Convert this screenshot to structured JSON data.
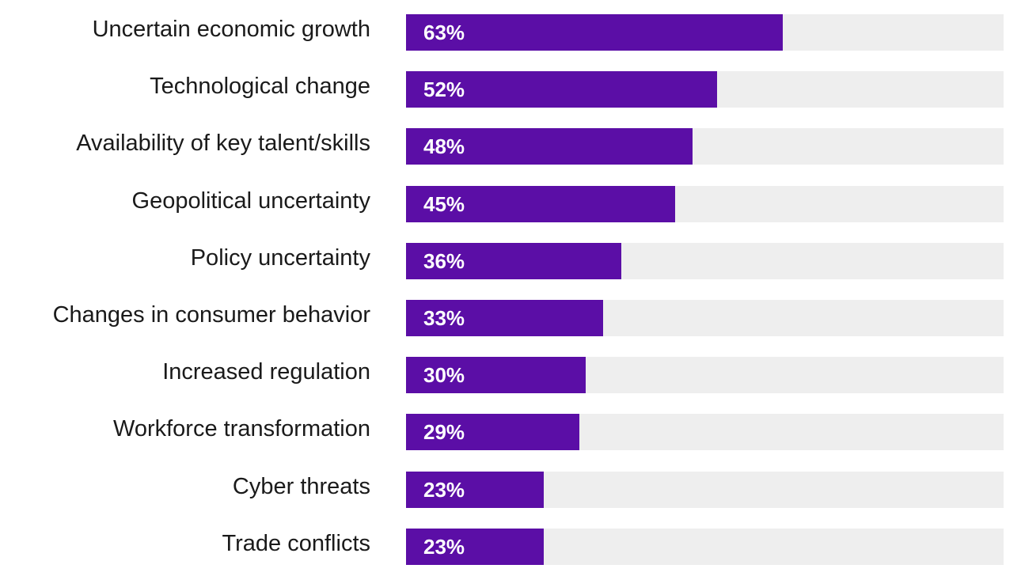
{
  "chart_data": {
    "type": "bar",
    "orientation": "horizontal",
    "categories": [
      "Uncertain economic growth",
      "Technological change",
      "Availability of key talent/skills",
      "Geopolitical uncertainty",
      "Policy uncertainty",
      "Changes in consumer behavior",
      "Increased regulation",
      "Workforce transformation",
      "Cyber threats",
      "Trade conflicts"
    ],
    "values": [
      63,
      52,
      48,
      45,
      36,
      33,
      30,
      29,
      23,
      23
    ],
    "value_labels": [
      "63%",
      "52%",
      "48%",
      "45%",
      "36%",
      "33%",
      "30%",
      "29%",
      "23%",
      "23%"
    ],
    "xlim": [
      0,
      100
    ],
    "grid": false,
    "colors": {
      "bar": "#5b0ea6",
      "track": "#eeeeee",
      "value_text": "#ffffff",
      "category_text": "#1a1a1a"
    }
  }
}
